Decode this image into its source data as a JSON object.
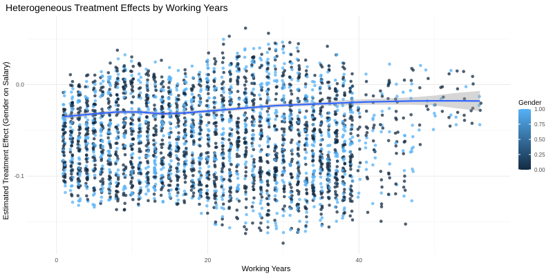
{
  "chart_data": {
    "type": "scatter",
    "title": "Heterogeneous Treatment Effects by Working Years",
    "xlabel": "Working Years",
    "ylabel": "Estimated Treatment Effect (Gender on Salary)",
    "xlim": [
      -4,
      60
    ],
    "ylim": [
      -0.185,
      0.075
    ],
    "x_ticks": [
      0,
      20,
      40
    ],
    "y_ticks": [
      -0.1,
      0.0
    ],
    "y_tick_labels": [
      "-0.1",
      "0.0"
    ],
    "grid": true,
    "legend": {
      "title": "Gender",
      "position": "right",
      "ticks": [
        0.0,
        0.25,
        0.5,
        0.75,
        1.0
      ],
      "tick_labels": [
        "0.00",
        "0.25",
        "0.50",
        "0.75",
        "1.00"
      ],
      "low_color": "#132B43",
      "high_color": "#56B1F7"
    },
    "smooth": {
      "color": "#3366FF",
      "ribbon_color": "#999999",
      "x": [
        1,
        3,
        5,
        8,
        11,
        14,
        17,
        20,
        23,
        26,
        29,
        32,
        35,
        38,
        41,
        44,
        47,
        50,
        53,
        56
      ],
      "y": [
        -0.035,
        -0.0335,
        -0.032,
        -0.03,
        -0.03,
        -0.032,
        -0.031,
        -0.029,
        -0.027,
        -0.025,
        -0.023,
        -0.022,
        -0.021,
        -0.02,
        -0.019,
        -0.0185,
        -0.018,
        -0.0178,
        -0.0178,
        -0.018
      ],
      "lower": [
        -0.038,
        -0.036,
        -0.034,
        -0.032,
        -0.032,
        -0.034,
        -0.033,
        -0.031,
        -0.029,
        -0.027,
        -0.025,
        -0.024,
        -0.023,
        -0.023,
        -0.022,
        -0.022,
        -0.022,
        -0.023,
        -0.026,
        -0.029
      ],
      "upper": [
        -0.032,
        -0.031,
        -0.03,
        -0.028,
        -0.028,
        -0.03,
        -0.029,
        -0.027,
        -0.025,
        -0.023,
        -0.021,
        -0.02,
        -0.019,
        -0.017,
        -0.016,
        -0.015,
        -0.014,
        -0.012,
        -0.009,
        -0.007
      ]
    },
    "points": {
      "x_min": 1,
      "x_max": 56,
      "y_range_by_x": [
        {
          "x": 1,
          "min": -0.135,
          "max": 0.012
        },
        {
          "x": 5,
          "min": -0.145,
          "max": 0.018
        },
        {
          "x": 8,
          "min": -0.15,
          "max": 0.048
        },
        {
          "x": 12,
          "min": -0.14,
          "max": 0.033
        },
        {
          "x": 16,
          "min": -0.145,
          "max": 0.025
        },
        {
          "x": 20,
          "min": -0.15,
          "max": 0.04
        },
        {
          "x": 22,
          "min": -0.165,
          "max": 0.065
        },
        {
          "x": 26,
          "min": -0.17,
          "max": 0.062
        },
        {
          "x": 30,
          "min": -0.175,
          "max": 0.06
        },
        {
          "x": 34,
          "min": -0.165,
          "max": 0.045
        },
        {
          "x": 38,
          "min": -0.16,
          "max": 0.04
        },
        {
          "x": 42,
          "min": -0.16,
          "max": 0.033
        },
        {
          "x": 46,
          "min": -0.155,
          "max": 0.03
        },
        {
          "x": 50,
          "min": -0.05,
          "max": 0.015
        },
        {
          "x": 53,
          "min": -0.045,
          "max": 0.02
        },
        {
          "x": 56,
          "min": -0.05,
          "max": 0.005
        }
      ]
    }
  }
}
